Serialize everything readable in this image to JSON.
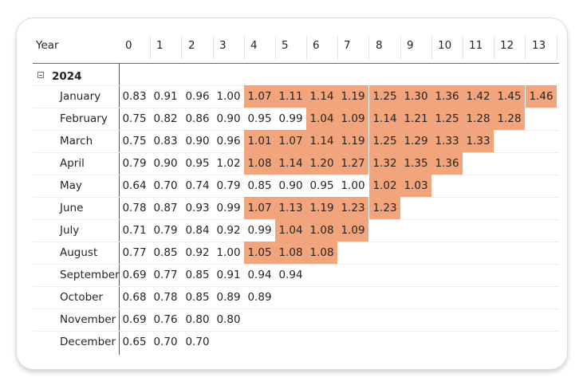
{
  "chart_data": {
    "type": "table",
    "row_header": "Year",
    "columns": [
      "0",
      "1",
      "2",
      "3",
      "4",
      "5",
      "6",
      "7",
      "8",
      "9",
      "10",
      "11",
      "12",
      "13"
    ],
    "group": "2024",
    "highlight_color": "#f2a57c",
    "highlight_threshold": 1.0,
    "rows": [
      {
        "label": "January",
        "values": [
          "0.83",
          "0.91",
          "0.96",
          "1.00",
          "1.07",
          "1.11",
          "1.14",
          "1.19",
          "1.25",
          "1.30",
          "1.36",
          "1.42",
          "1.45",
          "1.46"
        ]
      },
      {
        "label": "February",
        "values": [
          "0.75",
          "0.82",
          "0.86",
          "0.90",
          "0.95",
          "0.99",
          "1.04",
          "1.09",
          "1.14",
          "1.21",
          "1.25",
          "1.28",
          "1.28"
        ]
      },
      {
        "label": "March",
        "values": [
          "0.75",
          "0.83",
          "0.90",
          "0.96",
          "1.01",
          "1.07",
          "1.14",
          "1.19",
          "1.25",
          "1.29",
          "1.33",
          "1.33"
        ]
      },
      {
        "label": "April",
        "values": [
          "0.79",
          "0.90",
          "0.95",
          "1.02",
          "1.08",
          "1.14",
          "1.20",
          "1.27",
          "1.32",
          "1.35",
          "1.36"
        ]
      },
      {
        "label": "May",
        "values": [
          "0.64",
          "0.70",
          "0.74",
          "0.79",
          "0.85",
          "0.90",
          "0.95",
          "1.00",
          "1.02",
          "1.03"
        ]
      },
      {
        "label": "June",
        "values": [
          "0.78",
          "0.87",
          "0.93",
          "0.99",
          "1.07",
          "1.13",
          "1.19",
          "1.23",
          "1.23"
        ]
      },
      {
        "label": "July",
        "values": [
          "0.71",
          "0.79",
          "0.84",
          "0.92",
          "0.99",
          "1.04",
          "1.08",
          "1.09"
        ]
      },
      {
        "label": "August",
        "values": [
          "0.77",
          "0.85",
          "0.92",
          "1.00",
          "1.05",
          "1.08",
          "1.08"
        ]
      },
      {
        "label": "September",
        "values": [
          "0.69",
          "0.77",
          "0.85",
          "0.91",
          "0.94",
          "0.94"
        ]
      },
      {
        "label": "October",
        "values": [
          "0.68",
          "0.78",
          "0.85",
          "0.89",
          "0.89"
        ]
      },
      {
        "label": "November",
        "values": [
          "0.69",
          "0.76",
          "0.80",
          "0.80"
        ]
      },
      {
        "label": "December",
        "values": [
          "0.65",
          "0.70",
          "0.70"
        ]
      }
    ]
  }
}
